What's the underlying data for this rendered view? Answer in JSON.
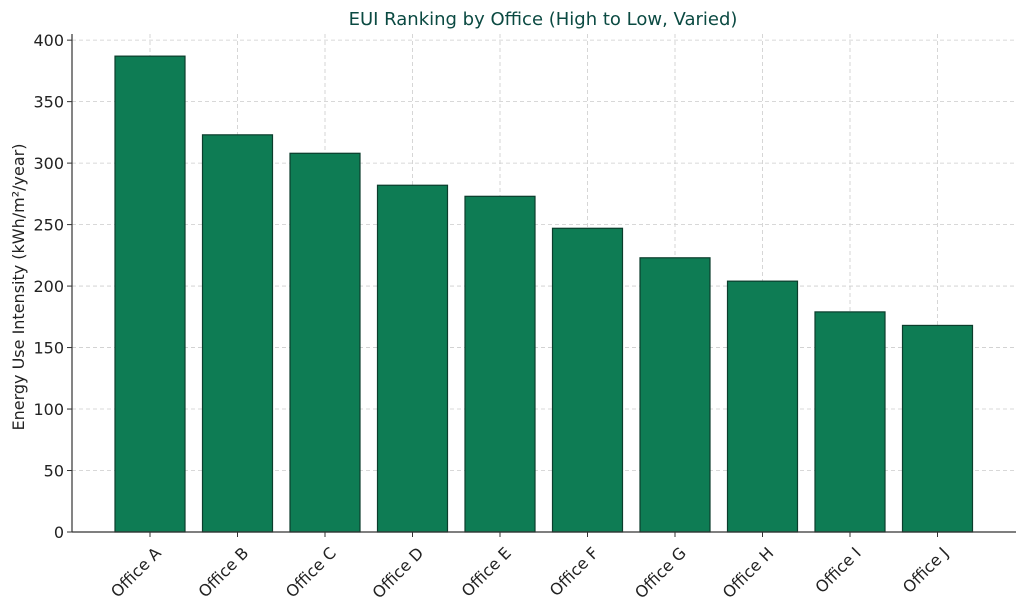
{
  "chart_data": {
    "type": "bar",
    "title": "EUI Ranking by Office (High to Low, Varied)",
    "xlabel": "",
    "ylabel": "Energy Use Intensity (kWh/m²/year)",
    "categories": [
      "Office A",
      "Office B",
      "Office C",
      "Office D",
      "Office E",
      "Office F",
      "Office G",
      "Office H",
      "Office I",
      "Office J"
    ],
    "values": [
      387,
      323,
      308,
      282,
      273,
      247,
      223,
      204,
      179,
      168
    ],
    "ylim": [
      0,
      405
    ],
    "yticks": [
      0,
      50,
      100,
      150,
      200,
      250,
      300,
      350,
      400
    ],
    "grid": true,
    "bar_color": "#0e7c54",
    "bar_edge_color": "#0b3d2c",
    "title_color": "#0b4a42"
  }
}
